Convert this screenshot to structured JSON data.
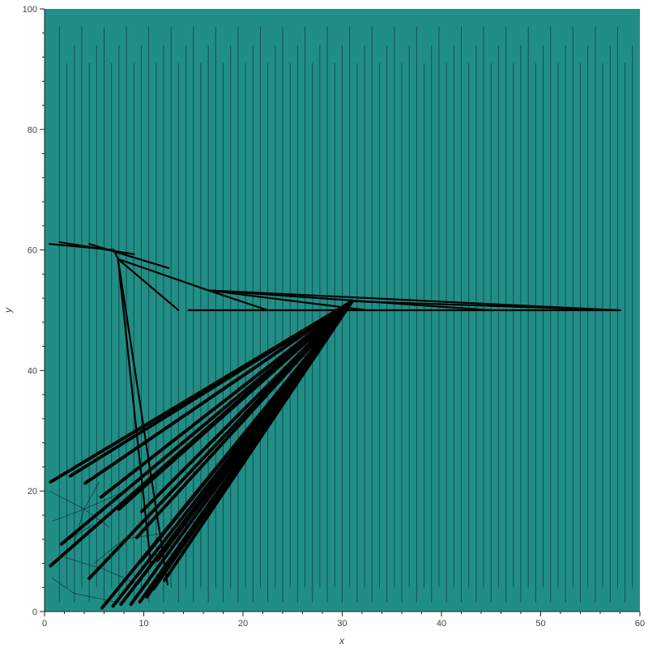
{
  "chart_data": {
    "type": "line",
    "title": "",
    "xlabel": "x",
    "ylabel": "y",
    "xlim": [
      0,
      60
    ],
    "ylim": [
      0,
      100
    ],
    "x_ticks": [
      "0",
      "10",
      "20",
      "30",
      "40",
      "50",
      "60"
    ],
    "y_ticks": [
      "0",
      "20",
      "40",
      "60",
      "80",
      "100"
    ],
    "background_color": "#218e86",
    "line_color": "#000000",
    "grid": false,
    "legend": "none",
    "hub": [
      31.0,
      51.5
    ],
    "fan_segments": [
      {
        "x": [
          0.6,
          31.0
        ],
        "y": [
          21.5,
          51.5
        ]
      },
      {
        "x": [
          2.6,
          31.0
        ],
        "y": [
          22.5,
          51.5
        ]
      },
      {
        "x": [
          4.1,
          31.0
        ],
        "y": [
          21.3,
          51.5
        ]
      },
      {
        "x": [
          5.7,
          31.0
        ],
        "y": [
          19.0,
          51.5
        ]
      },
      {
        "x": [
          7.5,
          31.0
        ],
        "y": [
          17.0,
          51.5
        ]
      },
      {
        "x": [
          1.7,
          31.0
        ],
        "y": [
          11.2,
          51.5
        ]
      },
      {
        "x": [
          0.6,
          31.0
        ],
        "y": [
          7.6,
          51.5
        ]
      },
      {
        "x": [
          4.5,
          31.0
        ],
        "y": [
          5.5,
          51.5
        ]
      },
      {
        "x": [
          5.8,
          31.0
        ],
        "y": [
          0.6,
          51.5
        ]
      },
      {
        "x": [
          6.9,
          31.0
        ],
        "y": [
          0.9,
          51.5
        ]
      },
      {
        "x": [
          7.7,
          31.0
        ],
        "y": [
          1.2,
          51.5
        ]
      },
      {
        "x": [
          8.7,
          31.0
        ],
        "y": [
          1.2,
          51.5
        ]
      },
      {
        "x": [
          9.6,
          31.0
        ],
        "y": [
          1.6,
          51.5
        ]
      },
      {
        "x": [
          10.3,
          31.0
        ],
        "y": [
          2.4,
          51.5
        ]
      },
      {
        "x": [
          11.0,
          31.0
        ],
        "y": [
          3.8,
          51.5
        ]
      },
      {
        "x": [
          9.4,
          31.0
        ],
        "y": [
          4.8,
          51.5
        ]
      },
      {
        "x": [
          9.8,
          31.0
        ],
        "y": [
          8.5,
          51.5
        ]
      },
      {
        "x": [
          9.3,
          31.0
        ],
        "y": [
          12.3,
          51.5
        ]
      },
      {
        "x": [
          9.8,
          31.0
        ],
        "y": [
          16.6,
          51.5
        ]
      },
      {
        "x": [
          11.4,
          31.0
        ],
        "y": [
          8.5,
          51.5
        ]
      },
      {
        "x": [
          12.1,
          31.0
        ],
        "y": [
          5.2,
          51.5
        ]
      }
    ],
    "tail_segments": [
      {
        "x": [
          31.0,
          57.9
        ],
        "y": [
          51.5,
          50.0
        ]
      },
      {
        "x": [
          16.5,
          57.9
        ],
        "y": [
          53.3,
          50.0
        ]
      },
      {
        "x": [
          16.5,
          45.0
        ],
        "y": [
          53.3,
          50.0
        ]
      },
      {
        "x": [
          16.5,
          32.5
        ],
        "y": [
          53.3,
          50.0
        ]
      },
      {
        "x": [
          16.5,
          22.5
        ],
        "y": [
          53.3,
          50.0
        ]
      },
      {
        "x": [
          14.5,
          58.0
        ],
        "y": [
          50.0,
          50.0
        ]
      },
      {
        "x": [
          7.4,
          16.5
        ],
        "y": [
          58.5,
          53.3
        ]
      },
      {
        "x": [
          7.4,
          13.5
        ],
        "y": [
          58.5,
          50.0
        ]
      },
      {
        "x": [
          7.4,
          12.4
        ],
        "y": [
          58.5,
          4.5
        ]
      },
      {
        "x": [
          7.4,
          10.7
        ],
        "y": [
          58.5,
          8.0
        ]
      },
      {
        "x": [
          7.4,
          7.0
        ],
        "y": [
          58.5,
          60.0
        ]
      },
      {
        "x": [
          0.5,
          7.0
        ],
        "y": [
          61.0,
          60.0
        ]
      },
      {
        "x": [
          1.5,
          9.0
        ],
        "y": [
          61.3,
          59.3
        ]
      },
      {
        "x": [
          4.5,
          12.5
        ],
        "y": [
          61.0,
          57.0
        ]
      }
    ],
    "thin_segments": [
      {
        "x": [
          4.0,
          0.5
        ],
        "y": [
          17.0,
          20.0
        ]
      },
      {
        "x": [
          4.0,
          7.5
        ],
        "y": [
          17.0,
          19.5
        ]
      },
      {
        "x": [
          4.0,
          0.8
        ],
        "y": [
          17.0,
          15.0
        ]
      },
      {
        "x": [
          4.0,
          6.5
        ],
        "y": [
          17.0,
          14.0
        ]
      },
      {
        "x": [
          4.0,
          3.0
        ],
        "y": [
          17.0,
          11.5
        ]
      },
      {
        "x": [
          4.0,
          5.5
        ],
        "y": [
          17.0,
          21.5
        ]
      },
      {
        "x": [
          8.0,
          5.0
        ],
        "y": [
          12.0,
          8.0
        ]
      },
      {
        "x": [
          8.0,
          12.0
        ],
        "y": [
          12.0,
          13.0
        ]
      },
      {
        "x": [
          6.0,
          2.0
        ],
        "y": [
          7.0,
          9.0
        ]
      },
      {
        "x": [
          6.0,
          9.5
        ],
        "y": [
          7.0,
          4.5
        ]
      },
      {
        "x": [
          3.0,
          7.5
        ],
        "y": [
          3.0,
          1.5
        ]
      },
      {
        "x": [
          3.0,
          0.8
        ],
        "y": [
          3.0,
          5.5
        ]
      },
      {
        "x": [
          10.5,
          13.0
        ],
        "y": [
          9.0,
          10.5
        ]
      },
      {
        "x": [
          2.0,
          5.0
        ],
        "y": [
          11.5,
          14.5
        ]
      }
    ],
    "vertical_lines": {
      "x_start": 1.5,
      "x_end": 59.5,
      "step": 0.75
    }
  }
}
